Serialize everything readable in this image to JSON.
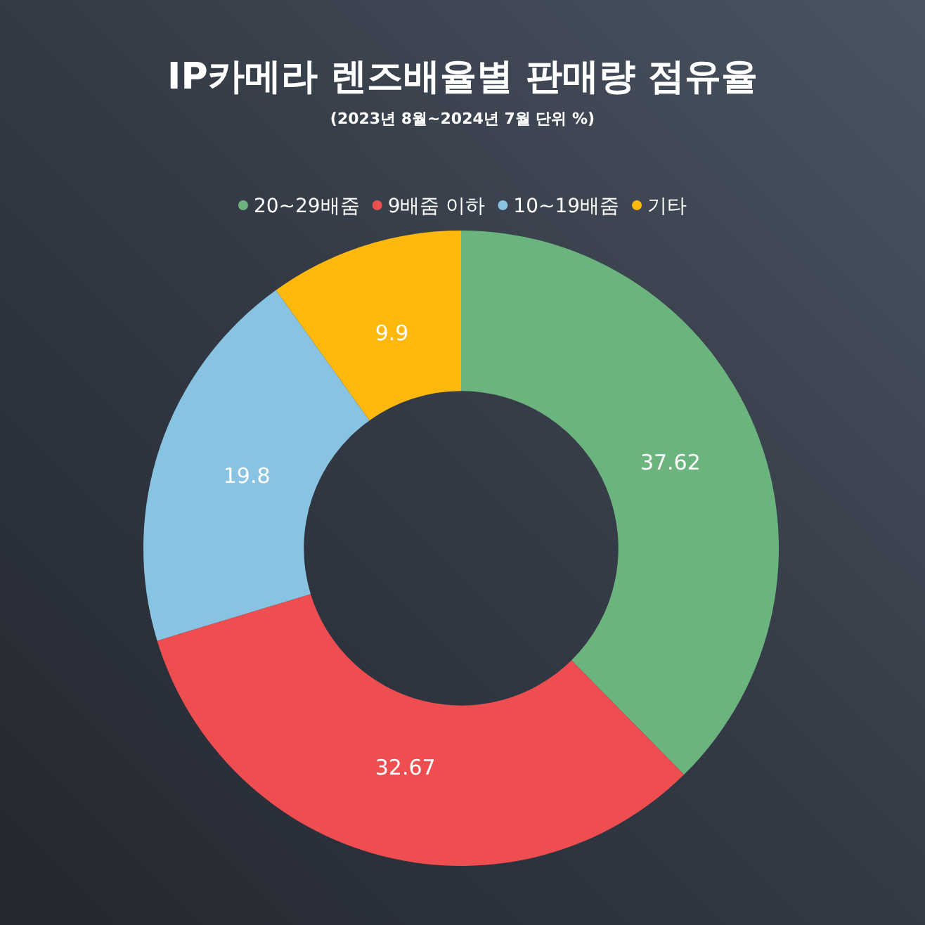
{
  "chart_data": {
    "type": "donut",
    "title": "IP카메라 렌즈배율별 판매량 점유율",
    "subtitle": "(2023년 8월~2024년 7월 단위 %)",
    "categories": [
      "20~29배줌",
      "9배줌 이하",
      "10~19배줌",
      "기타"
    ],
    "values": [
      37.62,
      32.67,
      19.8,
      9.9
    ],
    "colors": [
      "#6cb47d",
      "#ef4e51",
      "#88c3e1",
      "#feb80e"
    ],
    "legend": "top",
    "data_labels": true
  }
}
